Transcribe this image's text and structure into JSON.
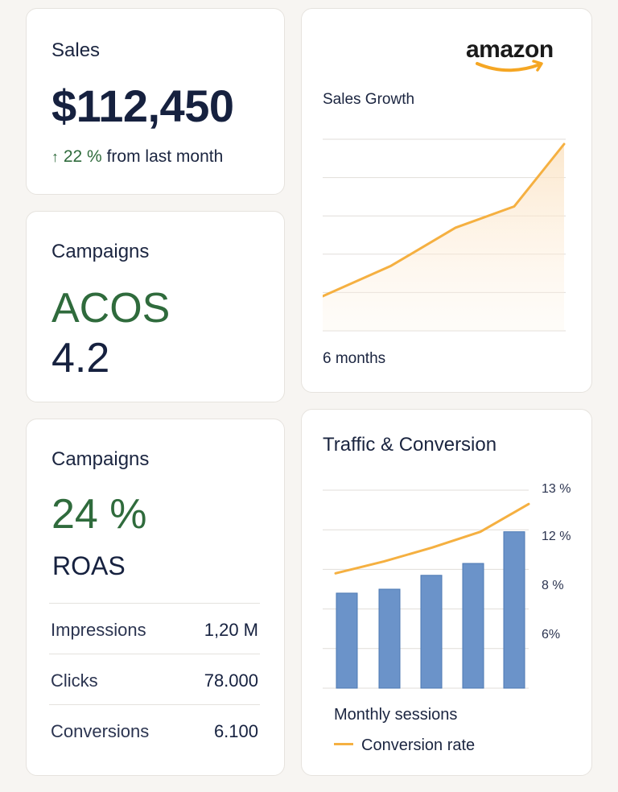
{
  "sales_card": {
    "title": "Sales",
    "value": "$112,450",
    "trend_arrow": "arrow-up-icon",
    "trend_pct": "22 %",
    "trend_text": "from last month"
  },
  "acos_card": {
    "title": "Campaigns",
    "metric": "ACOS",
    "value": "4.2"
  },
  "roas_card": {
    "title": "Campaigns",
    "value": "24 %",
    "metric": "ROAS",
    "rows": [
      {
        "label": "Impressions",
        "value": "1,20 M"
      },
      {
        "label": "Clicks",
        "value": "78.000"
      },
      {
        "label": "Conversions",
        "value": "6.100"
      }
    ]
  },
  "growth_card": {
    "brand": "amazon",
    "chart_title": "Sales Growth",
    "footer": "6 months"
  },
  "traffic_card": {
    "title": "Traffic & Conversion",
    "legend_bars": "Monthly sessions",
    "legend_line": "Conversion rate"
  },
  "colors": {
    "accent_orange": "#f5b041",
    "bar_blue": "#6b93c9",
    "positive_green": "#2f6b3c",
    "text_navy": "#16213f"
  },
  "chart_data": [
    {
      "type": "area",
      "title": "Sales Growth",
      "xlabel": "6 months",
      "grid": true,
      "series": [
        {
          "values": [
            0.0,
            0.2,
            0.45,
            0.59,
            1.0
          ]
        }
      ],
      "ylim": [
        0,
        1
      ]
    },
    {
      "type": "bar",
      "title": "Traffic & Conversion",
      "grid": true,
      "y_tick_labels": [
        "6%",
        "8 %",
        "12 %",
        "13 %"
      ],
      "series": [
        {
          "name": "Monthly sessions",
          "type": "bar",
          "values": [
            0.48,
            0.5,
            0.57,
            0.63,
            0.79
          ]
        },
        {
          "name": "Conversion rate",
          "type": "line",
          "values": [
            0.58,
            0.64,
            0.71,
            0.79,
            0.93
          ]
        }
      ],
      "ylim": [
        0,
        1
      ]
    }
  ]
}
